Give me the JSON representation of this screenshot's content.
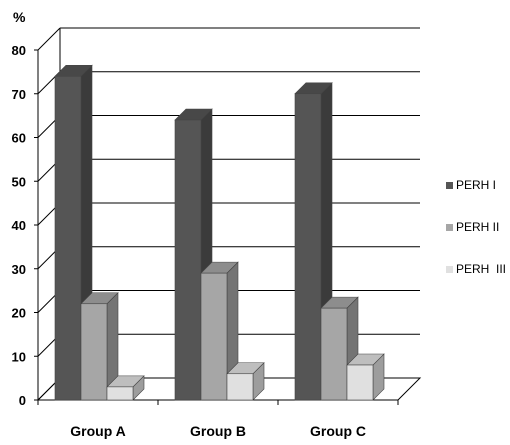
{
  "chart_data": {
    "type": "bar",
    "three_d": true,
    "categories": [
      "Group A",
      "Group B",
      "Group C"
    ],
    "series": [
      {
        "name": "PERH I",
        "values": [
          74,
          64,
          70
        ],
        "color": "#555555"
      },
      {
        "name": "PERH II",
        "values": [
          22,
          29,
          21
        ],
        "color": "#a6a6a6"
      },
      {
        "name": "PERH  III",
        "values": [
          3,
          6,
          8
        ],
        "color": "#e0e0e0"
      }
    ],
    "unit_label": "%",
    "ylim": [
      0,
      80
    ],
    "yticks": [
      "0",
      "10",
      "20",
      "30",
      "40",
      "50",
      "60",
      "70",
      "80"
    ],
    "grid": true,
    "legend_position": "right"
  }
}
